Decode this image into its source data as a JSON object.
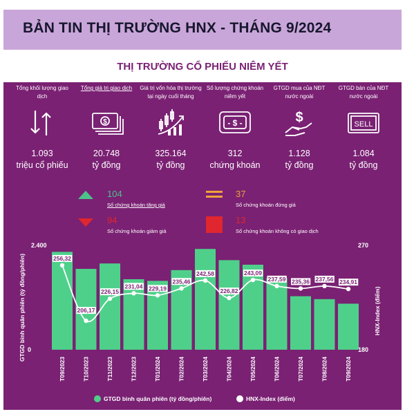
{
  "header": {
    "title": "BẢN TIN THỊ TRƯỜNG HNX - THÁNG 9/2024"
  },
  "section": {
    "title": "THỊ TRƯỜNG CỔ PHIẾU NIÊM YẾT"
  },
  "stats": [
    {
      "label": "Tổng khối lượng giao dịch",
      "value": "1.093",
      "unit": "triệu cổ phiếu",
      "icon": "up-down-arrows-icon"
    },
    {
      "label": "Tổng giá trị giao dịch",
      "value": "20.748",
      "unit": "tỷ đồng",
      "icon": "banknotes-icon"
    },
    {
      "label": "Giá trị vốn hóa thị trường tại ngày cuối tháng",
      "value": "325.164",
      "unit": "tỷ đồng",
      "icon": "candlestick-growth-icon"
    },
    {
      "label": "Số lượng chứng khoán niêm yết",
      "value": "312",
      "unit": "chứng khoán",
      "icon": "dollar-card-icon"
    },
    {
      "label": "GTGD mua của NĐT nước ngoài",
      "value": "1.128",
      "unit": "tỷ đồng",
      "icon": "hand-dollar-icon"
    },
    {
      "label": "GTGD bán của NĐT nước ngoài",
      "value": "1.084",
      "unit": "tỷ đồng",
      "icon": "sell-sign-icon"
    }
  ],
  "breadth": {
    "up": {
      "count": "104",
      "label": "Số chứng khoán tăng giá",
      "color": "#4cc28a"
    },
    "unchanged": {
      "count": "37",
      "label": "Số chứng khoán đứng giá",
      "color": "#f0a33a"
    },
    "down": {
      "count": "94",
      "label": "Số chứng khoán giảm giá",
      "color": "#e0262e"
    },
    "no_trade": {
      "count": "13",
      "label": "Số chứng khoán không có giao dịch",
      "color": "#e0262e"
    }
  },
  "chart_data": {
    "type": "bar",
    "categories": [
      "T09/2023",
      "T10/2023",
      "T11/2023",
      "T12/2023",
      "T01/2024",
      "T02/2024",
      "T03/2024",
      "T04/2024",
      "T05/2024",
      "T06/2024",
      "T07/2024",
      "T08/2024",
      "T09/2024"
    ],
    "series": [
      {
        "name": "GTGD bình quân phiên (tỷ đồng/phiên)",
        "type": "bar",
        "axis": "left",
        "color": "#4fd08a",
        "values": [
          2360,
          1950,
          2080,
          1700,
          1660,
          1920,
          2430,
          2160,
          2050,
          1730,
          1290,
          1220,
          1110
        ]
      },
      {
        "name": "HNX-Index (điểm)",
        "type": "line",
        "axis": "right",
        "color": "#ffffff",
        "values": [
          256.32,
          206.17,
          226.15,
          231.04,
          229.19,
          235.46,
          242.58,
          226.82,
          243.09,
          237.59,
          235.36,
          237.56,
          234.91
        ]
      }
    ],
    "point_labels": [
      "256,32",
      "206,17",
      "226,15",
      "231,04",
      "229,19",
      "235,46",
      "242,58",
      "226,82",
      "243,09",
      "237,59",
      "235,36",
      "237,56",
      "234,91"
    ],
    "ylabel": "GTGD bình quân phiên (tỷ đồng/phiên)",
    "y2label": "HNX-Index (điểm)",
    "ylim": [
      0,
      2400
    ],
    "y2lim": [
      180,
      270
    ],
    "yticks": [
      "0",
      "2.400"
    ],
    "y2ticks": [
      "180",
      "270"
    ],
    "legend": {
      "position": "bottom",
      "items": [
        "GTGD bình quân phiên (tỷ đồng/phiên)",
        "HNX-Index (điểm)"
      ]
    }
  }
}
